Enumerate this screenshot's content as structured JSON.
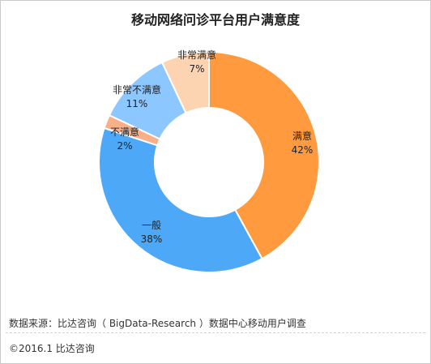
{
  "chart_data": {
    "type": "pie",
    "title": "移动网络问诊平台用户满意度",
    "donut": true,
    "slices": [
      {
        "name": "满意",
        "value": 42,
        "label": "42%",
        "color": "#FF9A3E"
      },
      {
        "name": "一般",
        "value": 38,
        "label": "38%",
        "color": "#4DA8F7"
      },
      {
        "name": "不满意",
        "value": 2,
        "label": "2%",
        "color": "#F9B088"
      },
      {
        "name": "非常不满意",
        "value": 11,
        "label": "11%",
        "color": "#8CC7FF"
      },
      {
        "name": "非常满意",
        "value": 7,
        "label": "7%",
        "color": "#FDD4B2"
      }
    ]
  },
  "footer": {
    "source": "数据来源：比达咨询（ BigData-Research ）数据中心移动用户调查",
    "copyright": "©2016.1  比达咨询"
  }
}
